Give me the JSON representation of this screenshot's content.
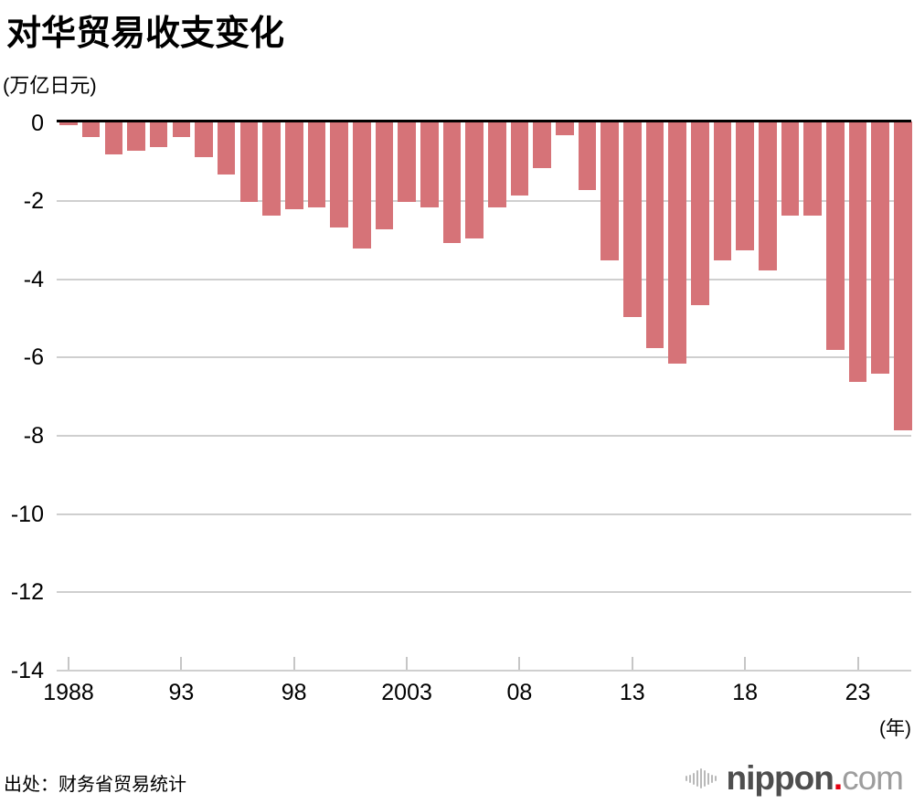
{
  "title": "对华贸易收支变化",
  "unit_label": "(万亿日元)",
  "x_axis_unit": "(年)",
  "source": "出处：财务省贸易统计",
  "logo": {
    "brand": "nippon",
    "dot": ".",
    "tld": "com"
  },
  "colors": {
    "bar": "#d67378",
    "axis": "#000000",
    "gridline": "#cfcfcf",
    "tick": "#c6c6c6",
    "logo_text": "#4e4e4e",
    "logo_dot": "#e60012",
    "logo_tld": "#9d9d9d",
    "logo_icon": "#b9b9b9"
  },
  "chart_data": {
    "type": "bar",
    "title": "对华贸易收支变化",
    "ylabel": "(万亿日元)",
    "xlabel": "(年)",
    "source": "出处：财务省贸易统计",
    "ylim": [
      -14,
      0
    ],
    "grid": true,
    "legend": false,
    "x": [
      1988,
      1989,
      1990,
      1991,
      1992,
      1993,
      1994,
      1995,
      1996,
      1997,
      1998,
      1999,
      2000,
      2001,
      2002,
      2003,
      2004,
      2005,
      2006,
      2007,
      2008,
      2009,
      2010,
      2011,
      2012,
      2013,
      2014,
      2015,
      2016,
      2017,
      2018,
      2019,
      2020,
      2021,
      2022,
      2023,
      2024,
      2025
    ],
    "values": [
      -0.1,
      -0.4,
      -0.85,
      -0.75,
      -0.65,
      -0.4,
      -0.9,
      -1.35,
      -2.05,
      -2.4,
      -2.25,
      -2.2,
      -2.7,
      -3.25,
      -2.75,
      -2.05,
      -2.2,
      -3.1,
      -3.0,
      -2.2,
      -1.9,
      -1.2,
      -0.35,
      -1.75,
      -3.55,
      -5.0,
      -5.8,
      -6.2,
      -4.7,
      -3.55,
      -3.3,
      -3.8,
      -2.4,
      -2.4,
      -5.85,
      -6.65,
      -6.45,
      -7.9
    ],
    "yticks": [
      {
        "value": 0,
        "label": "0"
      },
      {
        "value": -2,
        "label": "-2"
      },
      {
        "value": -4,
        "label": "-4"
      },
      {
        "value": -6,
        "label": "-6"
      },
      {
        "value": -8,
        "label": "-8"
      },
      {
        "value": -10,
        "label": "-10"
      },
      {
        "value": -12,
        "label": "-12"
      },
      {
        "value": -14,
        "label": "-14"
      }
    ],
    "xticks": [
      {
        "value": 1988,
        "label": "1988"
      },
      {
        "value": 1993,
        "label": "93"
      },
      {
        "value": 1998,
        "label": "98"
      },
      {
        "value": 2003,
        "label": "2003"
      },
      {
        "value": 2008,
        "label": "08"
      },
      {
        "value": 2013,
        "label": "13"
      },
      {
        "value": 2018,
        "label": "18"
      },
      {
        "value": 2023,
        "label": "23"
      }
    ]
  }
}
